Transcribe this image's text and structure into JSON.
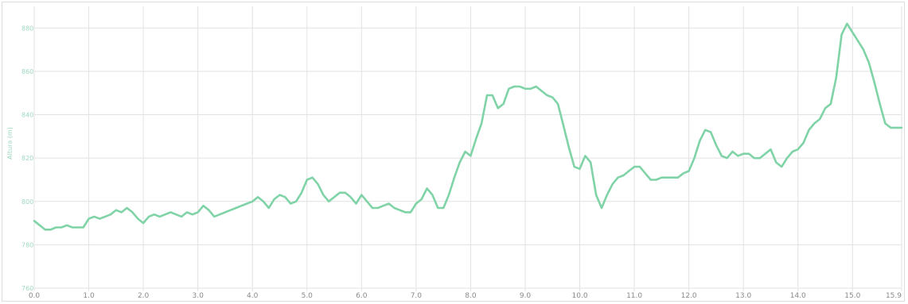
{
  "chart_data": {
    "type": "line",
    "title": "",
    "xlabel": "",
    "ylabel": "Altura (m)",
    "xlim": [
      0,
      15.9
    ],
    "ylim": [
      760,
      890
    ],
    "x_ticks": [
      "0.0",
      "1.0",
      "2.0",
      "3.0",
      "4.0",
      "5.0",
      "6.0",
      "7.0",
      "8.0",
      "9.0",
      "10.0",
      "11.0",
      "12.0",
      "13.0",
      "14.0",
      "15.0",
      "15.9"
    ],
    "y_ticks": [
      "760",
      "780",
      "800",
      "820",
      "840",
      "860",
      "880"
    ],
    "grid": true,
    "line_color": "#7fd3a6",
    "grid_color": "#e2e2e2",
    "series": [
      {
        "x": [
          0.0,
          0.1,
          0.2,
          0.3,
          0.4,
          0.5,
          0.6,
          0.7,
          0.8,
          0.9,
          1.0,
          1.1,
          1.2,
          1.3,
          1.4,
          1.5,
          1.6,
          1.7,
          1.8,
          1.9,
          2.0,
          2.1,
          2.2,
          2.3,
          2.4,
          2.5,
          2.6,
          2.7,
          2.8,
          2.9,
          3.0,
          3.1,
          3.2,
          3.3,
          3.4,
          3.5,
          3.6,
          3.7,
          3.8,
          3.9,
          4.0,
          4.1,
          4.2,
          4.3,
          4.4,
          4.5,
          4.6,
          4.7,
          4.8,
          4.9,
          5.0,
          5.1,
          5.2,
          5.3,
          5.4,
          5.5,
          5.6,
          5.7,
          5.8,
          5.9,
          6.0,
          6.1,
          6.2,
          6.3,
          6.4,
          6.5,
          6.6,
          6.7,
          6.8,
          6.9,
          7.0,
          7.1,
          7.2,
          7.3,
          7.4,
          7.5,
          7.6,
          7.7,
          7.8,
          7.9,
          8.0,
          8.1,
          8.2,
          8.3,
          8.4,
          8.5,
          8.6,
          8.7,
          8.8,
          8.9,
          9.0,
          9.1,
          9.2,
          9.3,
          9.4,
          9.5,
          9.6,
          9.7,
          9.8,
          9.9,
          10.0,
          10.1,
          10.2,
          10.3,
          10.4,
          10.5,
          10.6,
          10.7,
          10.8,
          10.9,
          11.0,
          11.1,
          11.2,
          11.3,
          11.4,
          11.5,
          11.6,
          11.7,
          11.8,
          11.9,
          12.0,
          12.1,
          12.2,
          12.3,
          12.4,
          12.5,
          12.6,
          12.7,
          12.8,
          12.9,
          13.0,
          13.1,
          13.2,
          13.3,
          13.4,
          13.5,
          13.6,
          13.7,
          13.8,
          13.9,
          14.0,
          14.1,
          14.2,
          14.3,
          14.4,
          14.5,
          14.6,
          14.7,
          14.8,
          14.9,
          15.0,
          15.1,
          15.2,
          15.3,
          15.4,
          15.5,
          15.6,
          15.7,
          15.8,
          15.9
        ],
        "y": [
          791,
          789,
          787,
          787,
          788,
          788,
          789,
          788,
          788,
          788,
          792,
          793,
          792,
          793,
          794,
          796,
          795,
          797,
          795,
          792,
          790,
          793,
          794,
          793,
          794,
          795,
          794,
          793,
          795,
          794,
          795,
          798,
          796,
          793,
          794,
          795,
          796,
          797,
          798,
          799,
          800,
          802,
          800,
          797,
          801,
          803,
          802,
          799,
          800,
          804,
          810,
          811,
          808,
          803,
          800,
          802,
          804,
          804,
          802,
          799,
          803,
          800,
          797,
          797,
          798,
          799,
          797,
          796,
          795,
          795,
          799,
          801,
          806,
          803,
          797,
          797,
          803,
          811,
          818,
          823,
          821,
          829,
          836,
          849,
          849,
          843,
          845,
          852,
          853,
          853,
          852,
          852,
          853,
          851,
          849,
          848,
          845,
          835,
          825,
          816,
          815,
          821,
          818,
          803,
          797,
          803,
          808,
          811,
          812,
          814,
          816,
          816,
          813,
          810,
          810,
          811,
          811,
          811,
          811,
          813,
          814,
          820,
          828,
          833,
          832,
          826,
          821,
          820,
          823,
          821,
          822,
          822,
          820,
          820,
          822,
          824,
          818,
          816,
          820,
          823,
          824,
          827,
          833,
          836,
          838,
          843,
          845,
          857,
          877,
          882,
          878,
          874,
          870,
          864,
          855,
          845,
          836,
          834,
          834,
          834
        ]
      }
    ]
  }
}
